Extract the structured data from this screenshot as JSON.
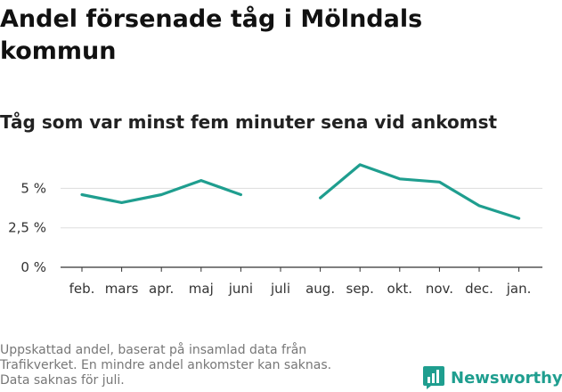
{
  "title": "Andel försenade tåg i Mölndals kommun",
  "subtitle": "Tåg som var minst fem minuter sena vid ankomst",
  "footer": {
    "line1": "Uppskattad andel, baserat på insamlad data från",
    "line2": "Trafikverket. En mindre andel ankomster kan saknas.",
    "line3": "Data saknas för juli."
  },
  "brand": {
    "name": "Newsworthy",
    "color": "#1f9e8f"
  },
  "chart_data": {
    "type": "line",
    "categories": [
      "feb.",
      "mars",
      "apr.",
      "maj",
      "juni",
      "juli",
      "aug.",
      "sep.",
      "okt.",
      "nov.",
      "dec.",
      "jan."
    ],
    "series": [
      {
        "values": [
          4.6,
          4.1,
          4.6,
          5.5,
          4.6,
          null,
          4.4,
          6.5,
          5.6,
          5.4,
          3.9,
          3.1
        ],
        "color": "#1f9e8f"
      }
    ],
    "yticks": [
      0,
      2.5,
      5
    ],
    "ytick_labels": [
      "0 %",
      "2,5 %",
      "5 %"
    ],
    "ylim": [
      0,
      7
    ],
    "grid": true
  }
}
